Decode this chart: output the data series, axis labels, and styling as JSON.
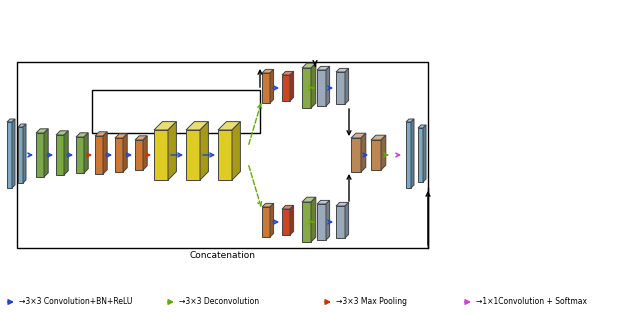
{
  "bg_color": "#ffffff",
  "blue_c": "#7aaac8",
  "green_c": "#7aaa44",
  "orange_c": "#cc7733",
  "dark_red_c": "#cc4422",
  "yellow_c": "#ddcc22",
  "green2_c": "#88aa44",
  "slate_c": "#9aaabb",
  "brown_c": "#bb8855",
  "arrow_blue": "#2244cc",
  "arrow_red": "#cc3300",
  "arrow_green": "#66aa00",
  "arrow_magenta": "#cc44cc",
  "concat_label": "Concatenation",
  "legend_items": [
    {
      "label": "→3×3 Convolution+BN+ReLU",
      "color": "#2244cc"
    },
    {
      "label": "→3×3 Deconvolution",
      "color": "#66aa00"
    },
    {
      "label": "→3×3 Max Pooling",
      "color": "#cc3300"
    },
    {
      "label": "→1×1Convolution + Softmax",
      "color": "#cc44cc"
    }
  ]
}
